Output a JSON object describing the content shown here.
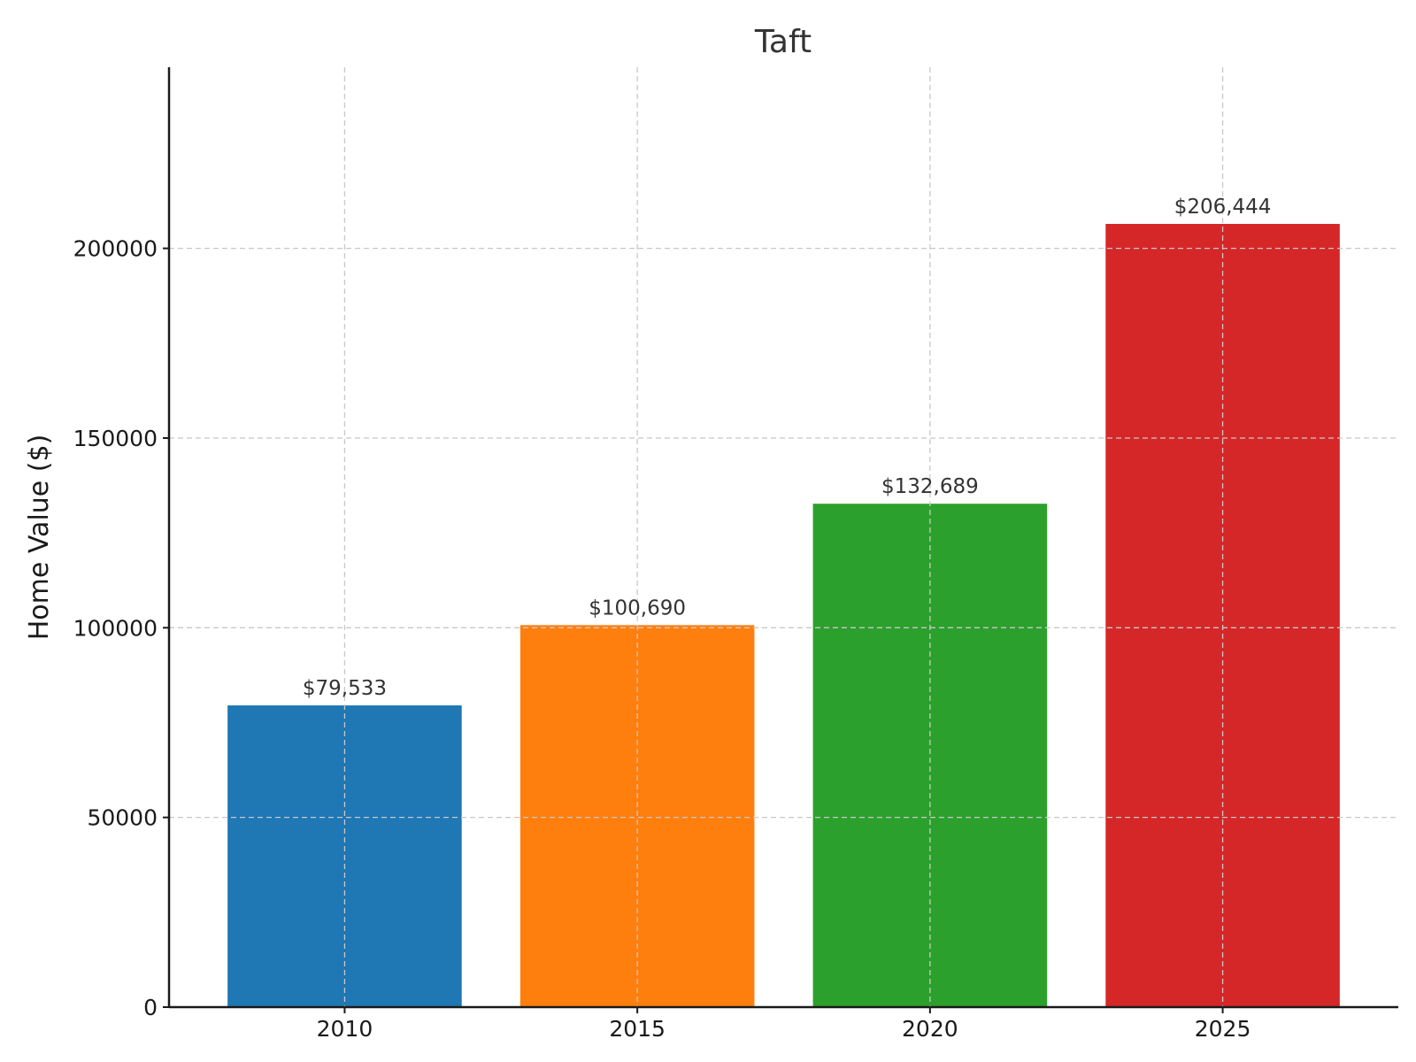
{
  "chart_data": {
    "type": "bar",
    "title": "Taft",
    "xlabel": "",
    "ylabel": "Home Value ($)",
    "categories": [
      "2010",
      "2015",
      "2020",
      "2025"
    ],
    "values": [
      79533,
      100690,
      132689,
      206444
    ],
    "value_labels": [
      "$79,533",
      "$100,690",
      "$132,689",
      "$206,444"
    ],
    "bar_colors": [
      "#1f77b4",
      "#ff7f0e",
      "#2ca02c",
      "#d62728"
    ],
    "yticks": [
      0,
      50000,
      100000,
      150000,
      200000
    ],
    "ytick_labels": [
      "0",
      "50000",
      "100000",
      "150000",
      "200000"
    ],
    "ylim": [
      0,
      247733
    ],
    "grid": true,
    "legend": "none"
  }
}
